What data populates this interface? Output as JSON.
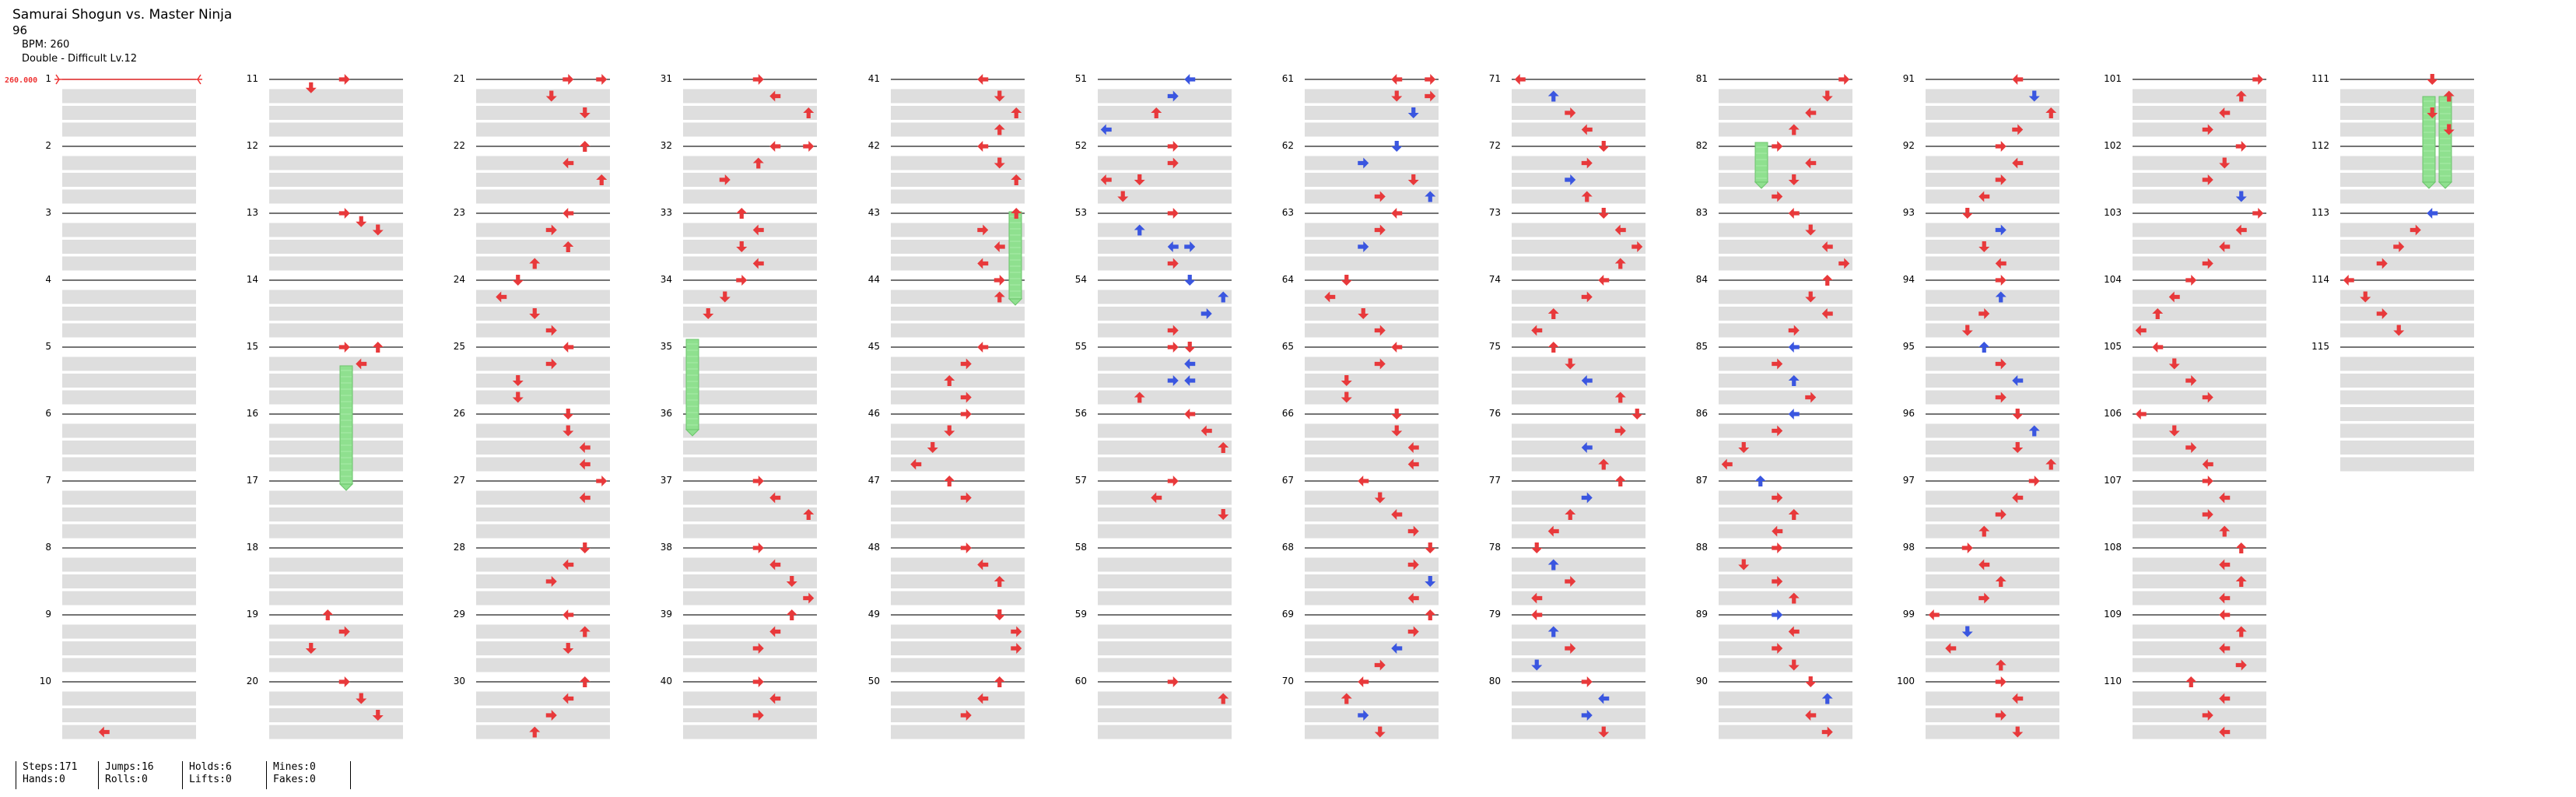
{
  "song_title": "Samurai Shogun vs. Master Ninja",
  "meter_line": "96",
  "bpm_line": "BPM: 260",
  "difficulty_line": "Double - Difficult Lv.12",
  "bpm_marker": "260.000",
  "measures": [
    1,
    2,
    3,
    4,
    5,
    6,
    7,
    8,
    9,
    10,
    11,
    12,
    13,
    14,
    15,
    16,
    17,
    18,
    19,
    20,
    21,
    22,
    23,
    24,
    25,
    26,
    27,
    28,
    29,
    30,
    31,
    32,
    33,
    34,
    35,
    36,
    37,
    38,
    39,
    40,
    41,
    42,
    43,
    44,
    45,
    46,
    47,
    48,
    49,
    50,
    51,
    52,
    53,
    54,
    55,
    56,
    57,
    58,
    59,
    60,
    61,
    62,
    63,
    64,
    65,
    66,
    67,
    68,
    69,
    70,
    71,
    72,
    73,
    74,
    75,
    76,
    77,
    78,
    79,
    80,
    81,
    82,
    83,
    84,
    85,
    86,
    87,
    88,
    89,
    90,
    91,
    92,
    93,
    94,
    95,
    96,
    97,
    98,
    99,
    100,
    101,
    102,
    103,
    104,
    105,
    106,
    107,
    108,
    109,
    110,
    111,
    112,
    113,
    114,
    115
  ],
  "colors": {
    "note_red": "#e8393b",
    "note_blue": "#3a56e0",
    "hold_green": "#8fe08f",
    "lane_gray": "#dedede"
  },
  "stats": {
    "steps": "Steps:171",
    "hands": "Hands:0",
    "jumps": "Jumps:16",
    "rolls": "Rolls:0",
    "holds": "Holds:6",
    "lifts": "Lifts:0",
    "mines": "Mines:0",
    "fakes": "Fakes:0"
  }
}
